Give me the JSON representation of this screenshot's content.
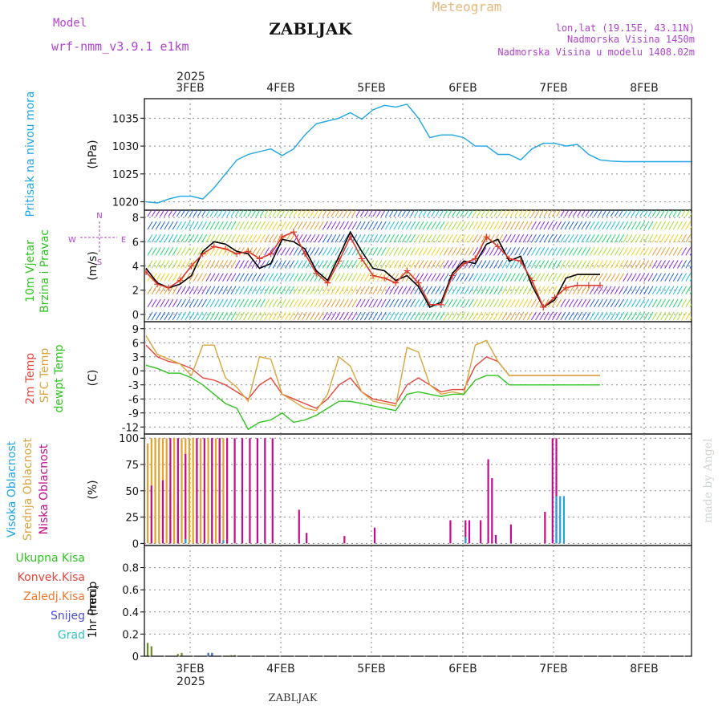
{
  "header": {
    "model_label": "Model",
    "model_name": "wrf-nmm_v3.9.1  e1km",
    "station": "ZABLJAK",
    "product": "Meteogram",
    "coords": "lon,lat (19.15E, 43.11N)",
    "elevation": "Nadmorska Visina 1450m",
    "model_elevation": "Nadmorska Visina u modelu 1408.02m",
    "footer_station": "ZABLJAK",
    "credit": "made by Angel"
  },
  "time_axis": {
    "year": "2025",
    "days": [
      "3FEB",
      "4FEB",
      "5FEB",
      "6FEB",
      "7FEB",
      "8FEB"
    ],
    "start_hour": 0,
    "end_hour": 144
  },
  "chart_data": [
    {
      "id": "pressure",
      "type": "line",
      "ylabel_lines": [
        "Pritisak na nivou mora"
      ],
      "unit": "(hPa)",
      "ylim": [
        1018.5,
        1038.5
      ],
      "yticks": [
        1020,
        1025,
        1030,
        1035
      ],
      "grid": true,
      "series": [
        {
          "color": "#1ea5e6",
          "x": [
            0,
            3,
            6,
            9,
            12,
            15,
            18,
            21,
            24,
            27,
            30,
            33,
            36,
            39,
            42,
            45,
            48,
            51,
            54,
            57,
            60,
            63,
            66,
            69,
            72,
            75,
            78,
            81,
            84,
            87,
            90,
            93,
            96,
            99,
            102,
            105,
            108,
            111,
            114,
            117,
            120,
            123,
            126,
            129,
            132,
            135,
            138,
            141,
            144
          ],
          "y": [
            1020,
            1019.8,
            1020.5,
            1021,
            1021,
            1020.5,
            1022.5,
            1025,
            1027.5,
            1028.5,
            1029,
            1029.5,
            1028.3,
            1029.5,
            1032,
            1034,
            1034.5,
            1035,
            1036,
            1034.8,
            1036.5,
            1037.3,
            1037,
            1037.5,
            1035,
            1031.5,
            1032,
            1032,
            1031.5,
            1030,
            1030,
            1028.5,
            1028.5,
            1027.5,
            1029.5,
            1030.5,
            1030.5,
            1030,
            1030.3,
            1028.5,
            1027.5,
            1027.3,
            1027.2,
            1027.2,
            1027.2,
            1027.2,
            1027.2,
            1027.2,
            1027.2
          ]
        }
      ]
    },
    {
      "id": "wind",
      "type": "line",
      "ylabel_lines": [
        "10m Vjetar",
        "Brzina i Pravac"
      ],
      "unit": "(m/s)",
      "direction_legend": [
        "N",
        "W",
        "E",
        "S"
      ],
      "ylim": [
        -0.6,
        8.6
      ],
      "yticks": [
        0,
        2,
        4,
        6,
        8
      ],
      "grid": true,
      "series": [
        {
          "color": "#000000",
          "x": [
            0,
            3,
            6,
            9,
            12,
            15,
            18,
            21,
            24,
            27,
            30,
            33,
            36,
            39,
            42,
            45,
            48,
            51,
            54,
            57,
            60,
            63,
            66,
            69,
            72,
            75,
            78,
            81,
            84,
            87,
            90,
            93,
            96,
            99,
            102,
            105,
            108,
            111,
            114,
            117,
            120
          ],
          "y": [
            3.8,
            2.6,
            2.2,
            2.5,
            3.2,
            5.2,
            6,
            5.8,
            5.2,
            5,
            3.8,
            4.2,
            6.2,
            6,
            5.4,
            3.6,
            2.8,
            4.8,
            6.8,
            5.2,
            3.8,
            3.6,
            2.8,
            3.2,
            2.3,
            0.6,
            1,
            3.4,
            4.4,
            4.2,
            5.8,
            6.2,
            4.4,
            4.8,
            2.4,
            0.6,
            1.2,
            3,
            3.3,
            3.3,
            3.3
          ]
        },
        {
          "color": "#e03a2c",
          "marker": "+",
          "x": [
            0,
            3,
            6,
            9,
            12,
            15,
            18,
            21,
            24,
            27,
            30,
            33,
            36,
            39,
            42,
            45,
            48,
            51,
            54,
            57,
            60,
            63,
            66,
            69,
            72,
            75,
            78,
            81,
            84,
            87,
            90,
            93,
            96,
            99,
            102,
            105,
            108,
            111,
            114,
            117,
            120
          ],
          "y": [
            3.5,
            2.5,
            2.2,
            2.8,
            4,
            5,
            5.6,
            5.4,
            5,
            5.2,
            4.6,
            5,
            6.4,
            6.8,
            5,
            3.4,
            2.6,
            4.4,
            6.4,
            4.6,
            3.2,
            3,
            2.6,
            3.6,
            2.6,
            0.8,
            0.8,
            3.2,
            4.2,
            4.6,
            6.4,
            5.6,
            4.6,
            4.4,
            2.8,
            0.6,
            1.4,
            2.2,
            2.4,
            2.4,
            2.4
          ]
        }
      ]
    },
    {
      "id": "temperature",
      "type": "line",
      "ylabel_lines": [
        "2m Temp",
        "SFC Temp",
        "dewpt Temp"
      ],
      "unit": "(C)",
      "ylim": [
        -13.5,
        10.5
      ],
      "yticks": [
        -12,
        -9,
        -6,
        -3,
        0,
        3,
        6,
        9
      ],
      "grid": true,
      "series": [
        {
          "name": "2m Temp",
          "color": "#e8453c",
          "x": [
            0,
            3,
            6,
            9,
            12,
            15,
            18,
            21,
            24,
            27,
            30,
            33,
            36,
            39,
            42,
            45,
            48,
            51,
            54,
            57,
            60,
            63,
            66,
            69,
            72,
            75,
            78,
            81,
            84,
            87,
            90,
            93,
            96,
            99,
            102,
            105,
            108,
            111,
            114,
            117,
            120
          ],
          "y": [
            5.5,
            3,
            2,
            1.5,
            0.5,
            -1.5,
            -2,
            -3,
            -4.5,
            -6,
            -3,
            -1.5,
            -5,
            -6,
            -7,
            -8,
            -6,
            -3,
            -1.5,
            -4.5,
            -6,
            -6.5,
            -7,
            -3,
            -1.5,
            -3,
            -4.5,
            -4,
            -4,
            1,
            3,
            2,
            -1,
            -1,
            -1,
            -1,
            -1,
            -1,
            -1,
            -1,
            -1
          ]
        },
        {
          "name": "SFC Temp",
          "color": "#d9a53c",
          "x": [
            0,
            3,
            6,
            9,
            12,
            15,
            18,
            21,
            24,
            27,
            30,
            33,
            36,
            39,
            42,
            45,
            48,
            51,
            54,
            57,
            60,
            63,
            66,
            69,
            72,
            75,
            78,
            81,
            84,
            87,
            90,
            93,
            96,
            99,
            102,
            105,
            108,
            111,
            114,
            117,
            120
          ],
          "y": [
            7.5,
            3.5,
            2.5,
            1.5,
            -1,
            5.5,
            5.5,
            -1.5,
            -3.5,
            -6.5,
            3,
            2.5,
            -5,
            -6.5,
            -8,
            -8.5,
            -5,
            3,
            1,
            -4.5,
            -6.5,
            -7,
            -7.5,
            5,
            4,
            -3,
            -5,
            -4.5,
            -5,
            5.5,
            6.5,
            2,
            -1,
            -1,
            -1,
            -1,
            -1,
            -1,
            -1,
            -1,
            -1
          ]
        },
        {
          "name": "dewpt Temp",
          "color": "#2ec41f",
          "x": [
            0,
            3,
            6,
            9,
            12,
            15,
            18,
            21,
            24,
            27,
            30,
            33,
            36,
            39,
            42,
            45,
            48,
            51,
            54,
            57,
            60,
            63,
            66,
            69,
            72,
            75,
            78,
            81,
            84,
            87,
            90,
            93,
            96,
            99,
            102,
            105,
            108,
            111,
            114,
            117,
            120
          ],
          "y": [
            1.2,
            0.5,
            -0.5,
            -0.5,
            -1.5,
            -3,
            -5,
            -7,
            -8,
            -12.5,
            -11,
            -10.5,
            -9,
            -11,
            -10.5,
            -9.5,
            -8,
            -6.5,
            -6.5,
            -7,
            -7.5,
            -8,
            -8.5,
            -5,
            -4.5,
            -5,
            -5.5,
            -5,
            -5,
            -2,
            -1,
            -1,
            -3,
            -3,
            -3,
            -3,
            -3,
            -3,
            -3,
            -3,
            -3
          ]
        }
      ]
    },
    {
      "id": "cloud",
      "type": "bar",
      "ylabel_lines": [
        "Visoka Oblacnost",
        "Srednja Oblacnost",
        "Niska Oblacnost"
      ],
      "unit": "(%)",
      "ylim": [
        -2,
        104
      ],
      "yticks": [
        0,
        25,
        50,
        75,
        100
      ],
      "grid": true,
      "series": [
        {
          "name": "Srednja Oblacnost",
          "color": "#e5a12b",
          "x": [
            0,
            1,
            2,
            3,
            4,
            5,
            6,
            7,
            8,
            9,
            10,
            11,
            12,
            13,
            14,
            16,
            17,
            18,
            19,
            20,
            21,
            22,
            23,
            24,
            25,
            26,
            27,
            28,
            29,
            30,
            31,
            32,
            33,
            34,
            35,
            36,
            37,
            38,
            39,
            40,
            41,
            42,
            43,
            44,
            45,
            46,
            47,
            48,
            49,
            50,
            51,
            52,
            53,
            54,
            55,
            56,
            57,
            58,
            59,
            60,
            61,
            62,
            63,
            64,
            65,
            66,
            67,
            68,
            69,
            70,
            71,
            72,
            73,
            74,
            75,
            76,
            77,
            78,
            79,
            80,
            81,
            82,
            83,
            84,
            85,
            86,
            87,
            88,
            89,
            90,
            91,
            92,
            93,
            94,
            95,
            96,
            97,
            98,
            99,
            100,
            101,
            102,
            103,
            104,
            105,
            106,
            107,
            108,
            109,
            110,
            111,
            112,
            113,
            114,
            115,
            116,
            117,
            118,
            119,
            120
          ],
          "y": [
            95,
            100,
            100,
            100,
            100,
            100,
            48,
            100,
            38,
            100,
            100,
            100,
            100,
            100,
            100,
            100,
            100,
            100,
            100,
            100,
            23,
            0,
            0,
            0,
            0,
            0,
            0,
            0,
            0,
            0,
            0,
            0,
            0,
            0,
            0,
            0,
            0,
            0,
            0,
            0,
            0,
            0,
            0,
            0,
            0,
            0,
            0,
            0,
            0,
            0,
            0,
            0,
            0,
            0,
            0,
            0,
            0,
            0,
            0,
            0,
            0,
            0,
            0,
            0,
            0,
            0,
            0,
            0,
            0,
            0,
            0,
            0,
            0,
            0,
            0,
            0,
            0,
            0,
            0,
            0,
            0,
            0,
            0,
            0,
            0,
            0,
            0,
            0,
            0,
            0,
            0,
            0,
            0,
            0,
            0,
            0,
            0,
            0,
            0,
            0,
            0,
            0,
            0,
            0,
            0,
            0,
            0,
            0,
            0,
            0,
            0,
            0,
            0,
            0,
            0,
            0,
            0,
            0,
            0,
            0
          ]
        },
        {
          "name": "Niska Oblacnost",
          "color": "#c00d8b",
          "x": [
            1,
            4,
            6,
            8,
            10,
            13,
            15,
            17,
            19,
            21,
            23,
            25,
            27,
            29,
            31,
            33,
            40,
            42,
            52,
            60,
            80,
            84,
            85,
            88,
            90,
            91,
            92,
            96,
            105,
            107,
            108
          ],
          "y": [
            55,
            60,
            100,
            100,
            85,
            100,
            100,
            100,
            100,
            100,
            100,
            100,
            100,
            100,
            100,
            100,
            32,
            10,
            7,
            15,
            22,
            22,
            22,
            22,
            80,
            62,
            8,
            18,
            30,
            100,
            100
          ]
        },
        {
          "name": "Visoka Oblacnost",
          "color": "#1ea5e6",
          "x": [
            10,
            20,
            84,
            108,
            109,
            110
          ],
          "y": [
            4,
            3,
            6,
            45,
            45,
            45
          ]
        }
      ]
    },
    {
      "id": "precip",
      "type": "bar",
      "ylabel_lines": [
        "1hr Precip"
      ],
      "unit": "(mm)",
      "ylim": [
        0,
        1.0
      ],
      "yticks": [
        0,
        0.2,
        0.4,
        0.6,
        0.8
      ],
      "grid": true,
      "legend": [
        {
          "name": "Ukupna  Kisa",
          "color": "#2ec41f"
        },
        {
          "name": "Konvek.Kisa",
          "color": "#e8453c"
        },
        {
          "name": "Zaledj.Kisa",
          "color": "#f0762c"
        },
        {
          "name": "Snijeg",
          "color": "#4a4ae0"
        },
        {
          "name": "Grad",
          "color": "#2ec4c4"
        }
      ],
      "series": [
        {
          "name": "Ukupna  Kisa",
          "color": "#6a8a2a",
          "x": [
            0,
            1,
            8,
            9,
            16,
            17,
            22,
            23
          ],
          "y": [
            0.12,
            0.09,
            0.02,
            0.03,
            0.03,
            0.03,
            0.01,
            0.01
          ]
        },
        {
          "name": "Snijeg",
          "color": "#4a6ad0",
          "x": [
            16,
            17
          ],
          "y": [
            0.03,
            0.03
          ]
        }
      ]
    }
  ]
}
